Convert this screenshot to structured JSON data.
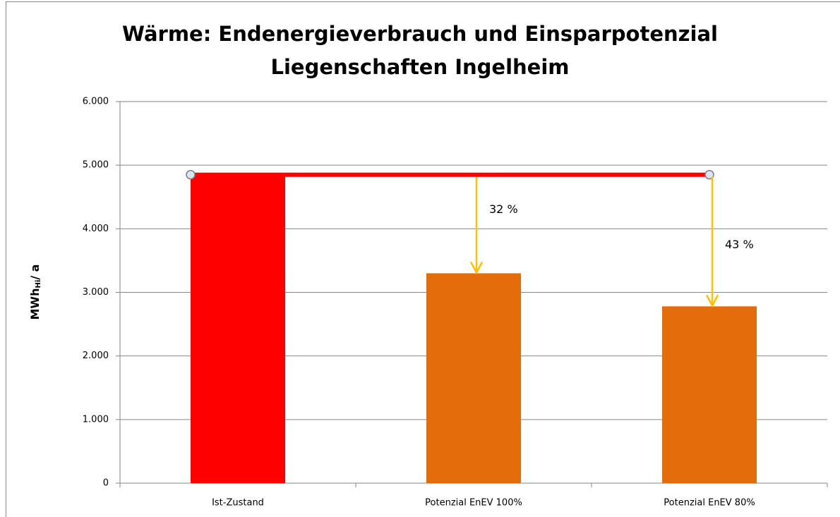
{
  "chart_data": {
    "type": "bar",
    "title": [
      "Wärme: Endenergieverbrauch und Einsparpotenzial",
      "Liegenschaften Ingelheim"
    ],
    "y_label": {
      "main": "MWh",
      "sub": "Hi",
      "rest": "/ a"
    },
    "categories": [
      "Ist-Zustand",
      "Potenzial EnEV 100%",
      "Potenzial EnEV 80%"
    ],
    "values": [
      4850,
      3300,
      2780
    ],
    "colors": [
      "#ff0000",
      "#e46c0a",
      "#e46c0a"
    ],
    "ylim": [
      0,
      6000
    ],
    "yticks": [
      0,
      {
        "value": 1000,
        "label": "1.000"
      },
      {
        "value": 2000,
        "label": "2.000"
      },
      {
        "value": 3000,
        "label": "3.000"
      },
      {
        "value": 4000,
        "label": "4.000"
      },
      {
        "value": 5000,
        "label": "5.000"
      },
      {
        "value": 6000,
        "label": "6.000"
      }
    ],
    "grid": true,
    "reference_color": "#ff0000",
    "arrow_color": "#ffc000",
    "annotations": [
      {
        "value": 32,
        "label": "32 %"
      },
      {
        "value": 43,
        "label": "43 %"
      }
    ]
  }
}
